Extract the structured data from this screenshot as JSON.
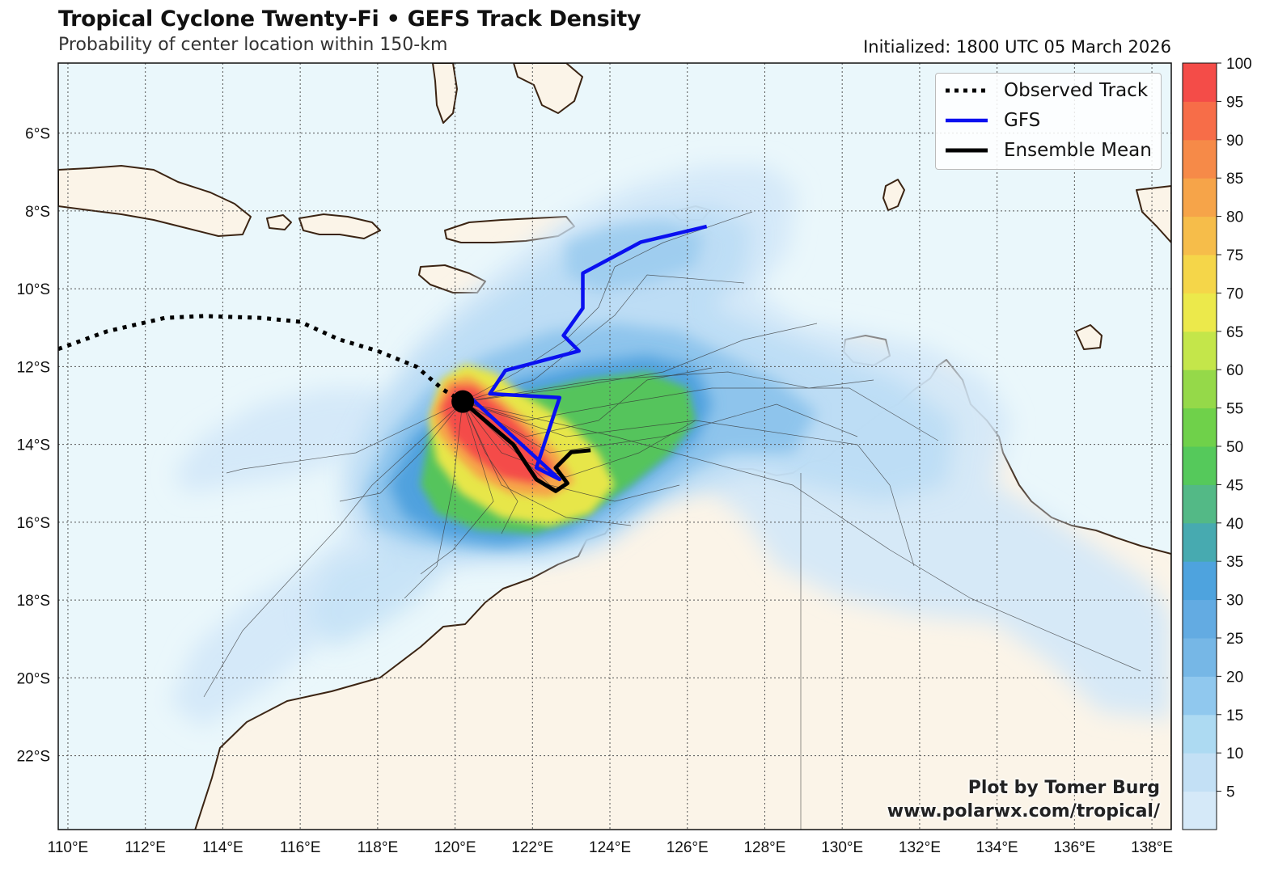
{
  "title": "Tropical Cyclone Twenty-Fi • GEFS Track Density",
  "subtitle": "Probability of center location within 150-km",
  "initialized": "Initialized: 1800 UTC 05 March 2026",
  "credit": {
    "line1": "Plot by Tomer Burg",
    "line2": "www.polarwx.com/tropical/"
  },
  "legend": {
    "observed": "Observed Track",
    "gfs": "GFS",
    "mean": "Ensemble Mean"
  },
  "colors": {
    "ocean": "#eaf7fb",
    "land": "#fbf4e8",
    "coast": "#3b2413",
    "gfs": "#0a10f0",
    "mean": "#000000",
    "grid": "#555555"
  },
  "map": {
    "lon_range": [
      109.75,
      138.5
    ],
    "lat_range": [
      -23.9,
      -4.2
    ],
    "lon_ticks": [
      "110°E",
      "112°E",
      "114°E",
      "116°E",
      "118°E",
      "120°E",
      "122°E",
      "124°E",
      "126°E",
      "128°E",
      "130°E",
      "132°E",
      "134°E",
      "136°E",
      "138°E"
    ],
    "lat_ticks": [
      "6°S",
      "8°S",
      "10°S",
      "12°S",
      "14°S",
      "16°S",
      "18°S",
      "20°S",
      "22°S"
    ],
    "storm_position": [
      120.2,
      -12.9
    ]
  },
  "colorbar": {
    "ticks": [
      "5",
      "10",
      "15",
      "20",
      "25",
      "30",
      "35",
      "40",
      "45",
      "50",
      "55",
      "60",
      "65",
      "70",
      "75",
      "80",
      "85",
      "90",
      "95",
      "100"
    ],
    "colors": [
      "#d5e9f8",
      "#c3e0f5",
      "#addaf2",
      "#90c8ee",
      "#76b7e6",
      "#63abe2",
      "#4ea3de",
      "#47aab0",
      "#53b986",
      "#55c95b",
      "#6fd14a",
      "#95d949",
      "#c4e64a",
      "#ece94b",
      "#f5d649",
      "#f6bd4a",
      "#f6a449",
      "#f68a48",
      "#f76d48",
      "#f44c48"
    ]
  },
  "tracks": {
    "observed": [
      [
        109.75,
        -11.55
      ],
      [
        111.0,
        -11.1
      ],
      [
        112.5,
        -10.75
      ],
      [
        113.5,
        -10.7
      ],
      [
        115.0,
        -10.75
      ],
      [
        116.0,
        -10.85
      ],
      [
        117.0,
        -11.3
      ],
      [
        118.0,
        -11.6
      ],
      [
        119.0,
        -12.0
      ],
      [
        119.7,
        -12.6
      ],
      [
        120.2,
        -12.9
      ]
    ],
    "gfs": [
      [
        126.5,
        -8.4
      ],
      [
        124.8,
        -8.8
      ],
      [
        123.3,
        -9.6
      ],
      [
        123.3,
        -10.5
      ],
      [
        122.8,
        -11.2
      ],
      [
        123.2,
        -11.6
      ],
      [
        121.3,
        -12.1
      ],
      [
        120.9,
        -12.7
      ],
      [
        122.7,
        -12.8
      ],
      [
        122.1,
        -14.6
      ],
      [
        122.7,
        -14.9
      ],
      [
        120.4,
        -12.8
      ]
    ],
    "mean": [
      [
        120.2,
        -12.9
      ],
      [
        121.5,
        -14.0
      ],
      [
        122.1,
        -14.9
      ],
      [
        122.6,
        -15.2
      ],
      [
        122.9,
        -15.0
      ],
      [
        122.6,
        -14.6
      ],
      [
        123.0,
        -14.2
      ],
      [
        123.5,
        -14.15
      ]
    ]
  }
}
